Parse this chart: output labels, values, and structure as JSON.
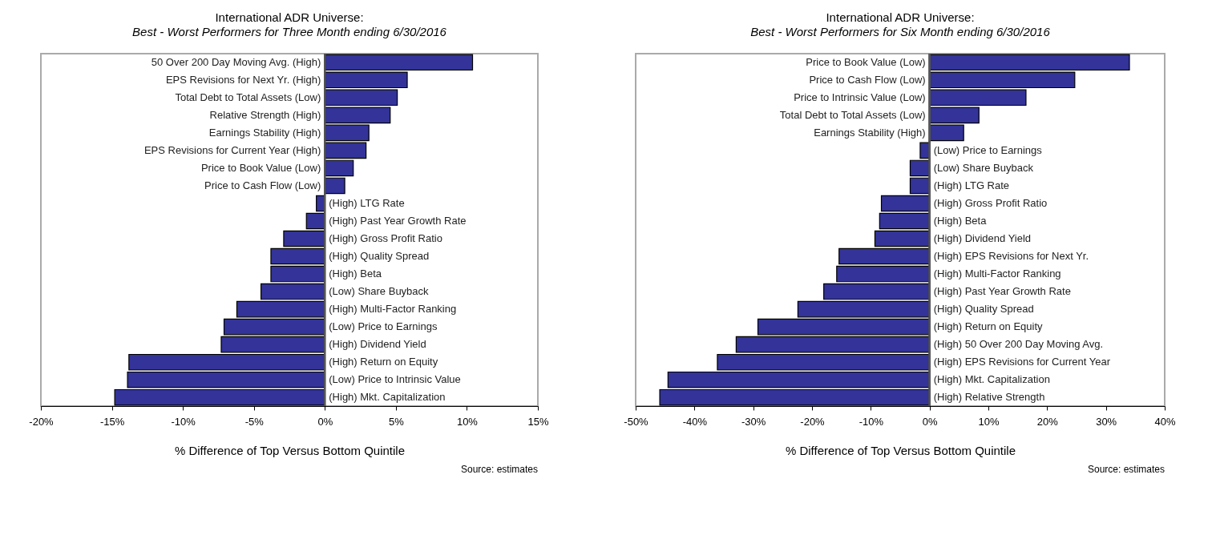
{
  "chart_data": [
    {
      "type": "bar",
      "orientation": "horizontal",
      "title": "International ADR Universe:",
      "subtitle": "Best - Worst Performers for Three Month ending 6/30/2016",
      "xlabel": "% Difference of Top Versus Bottom Quintile",
      "annotations": [
        "Source: estimates"
      ],
      "color": "#333399",
      "categories": [
        "50 Over 200 Day Moving Avg. (High)",
        "EPS Revisions for Next Yr. (High)",
        "Total Debt to Total Assets (Low)",
        "Relative Strength (High)",
        "Earnings Stability (High)",
        "EPS Revisions for Current Year (High)",
        "Price to Book Value (Low)",
        "Price to Cash Flow (Low)",
        "(High) LTG Rate",
        "(High) Past Year Growth Rate",
        "(High) Gross Profit Ratio",
        "(High) Quality Spread",
        "(High) Beta",
        "(Low) Share Buyback",
        "(High) Multi-Factor Ranking",
        "(Low) Price to Earnings",
        "(High) Dividend Yield",
        "(High) Return on Equity",
        "(Low) Price to Intrinsic Value",
        "(High) Mkt. Capitalization"
      ],
      "values": [
        10.4,
        5.8,
        5.1,
        4.6,
        3.1,
        2.9,
        2.0,
        1.4,
        -0.6,
        -1.3,
        -2.9,
        -3.8,
        -3.8,
        -4.5,
        -6.2,
        -7.1,
        -7.3,
        -13.8,
        -13.9,
        -14.8
      ],
      "xlim": [
        -20,
        15
      ],
      "xticks": [
        {
          "value": -20,
          "label": "-20%"
        },
        {
          "value": -15,
          "label": "-15%"
        },
        {
          "value": -10,
          "label": "-10%"
        },
        {
          "value": -5,
          "label": "-5%"
        },
        {
          "value": 0,
          "label": "0%"
        },
        {
          "value": 5,
          "label": "5%"
        },
        {
          "value": 10,
          "label": "10%"
        },
        {
          "value": 15,
          "label": "15%"
        }
      ]
    },
    {
      "type": "bar",
      "orientation": "horizontal",
      "title": "International ADR Universe:",
      "subtitle": "Best - Worst Performers for Six Month ending 6/30/2016",
      "xlabel": "% Difference of Top Versus Bottom Quintile",
      "annotations": [
        "Source: estimates"
      ],
      "color": "#333399",
      "categories": [
        "Price to Book Value (Low)",
        "Price to Cash Flow (Low)",
        "Price to Intrinsic Value (Low)",
        "Total Debt to Total Assets (Low)",
        "Earnings Stability (High)",
        "(Low) Price to Earnings",
        "(Low) Share Buyback",
        "(High) LTG Rate",
        "(High) Gross Profit Ratio",
        "(High) Beta",
        "(High) Dividend Yield",
        "(High) EPS Revisions for Next Yr.",
        "(High) Multi-Factor Ranking",
        "(High) Past Year Growth Rate",
        "(High) Quality Spread",
        "(High) Return on Equity",
        "(High) 50 Over 200 Day Moving Avg.",
        "(High) EPS Revisions for Current Year",
        "(High) Mkt. Capitalization",
        "(High) Relative Strength"
      ],
      "values": [
        34.0,
        24.7,
        16.4,
        8.4,
        5.8,
        -1.6,
        -3.3,
        -3.3,
        -8.2,
        -8.5,
        -9.3,
        -15.4,
        -15.8,
        -18.0,
        -22.4,
        -29.2,
        -32.9,
        -36.1,
        -44.5,
        -45.9
      ],
      "xlim": [
        -50,
        40
      ],
      "xticks": [
        {
          "value": -50,
          "label": "-50%"
        },
        {
          "value": -40,
          "label": "-40%"
        },
        {
          "value": -30,
          "label": "-30%"
        },
        {
          "value": -20,
          "label": "-20%"
        },
        {
          "value": -10,
          "label": "-10%"
        },
        {
          "value": 0,
          "label": "0%"
        },
        {
          "value": 10,
          "label": "10%"
        },
        {
          "value": 20,
          "label": "20%"
        },
        {
          "value": 30,
          "label": "30%"
        },
        {
          "value": 40,
          "label": "40%"
        }
      ]
    }
  ]
}
